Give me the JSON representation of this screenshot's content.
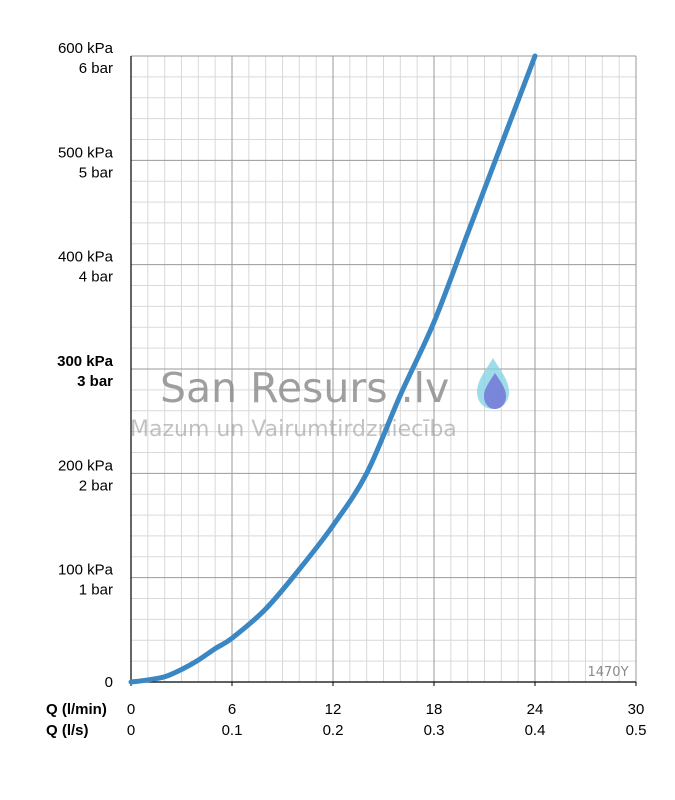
{
  "chart_data": {
    "type": "line",
    "x_label_flow_lmin": "Q (l/min)",
    "x_label_flow_ls": "Q (l/s)",
    "x_ticks_lmin": [
      "0",
      "6",
      "12",
      "18",
      "24",
      "30"
    ],
    "x_ticks_ls": [
      "0",
      "0.1",
      "0.2",
      "0.3",
      "0.4",
      "0.5"
    ],
    "y_ticks": [
      {
        "value": 0,
        "kpa": "0",
        "bar": ""
      },
      {
        "value": 100,
        "kpa": "100 kPa",
        "bar": "1 bar"
      },
      {
        "value": 200,
        "kpa": "200 kPa",
        "bar": "2 bar"
      },
      {
        "value": 300,
        "kpa": "300 kPa",
        "bar": "3 bar",
        "bold": true
      },
      {
        "value": 400,
        "kpa": "400 kPa",
        "bar": "4 bar"
      },
      {
        "value": 500,
        "kpa": "500 kPa",
        "bar": "5 bar"
      },
      {
        "value": 600,
        "kpa": "600 kPa",
        "bar": "6 bar"
      }
    ],
    "xlim": [
      0,
      30
    ],
    "ylim": [
      0,
      600
    ],
    "grid": true,
    "series": [
      {
        "color": "#3a87c3",
        "x": [
          0,
          1,
          2,
          3,
          4,
          5,
          6,
          8,
          10,
          12,
          14,
          16,
          18,
          20,
          22,
          24
        ],
        "y": [
          0,
          2,
          5,
          12,
          21,
          32,
          42,
          70,
          108,
          150,
          200,
          275,
          345,
          430,
          515,
          600
        ]
      }
    ],
    "annotations": [
      "1470Y"
    ]
  },
  "watermark": {
    "title": "San Resurs .lv",
    "subtitle": "Mazum un Vairumtirdzniecība",
    "drop_outer_color": "#7fd0e3",
    "drop_inner_color": "#6d6ad4"
  },
  "colors": {
    "grid_major": "#9a9a9a",
    "grid_minor": "#d9d9d9",
    "axis": "#000000"
  }
}
